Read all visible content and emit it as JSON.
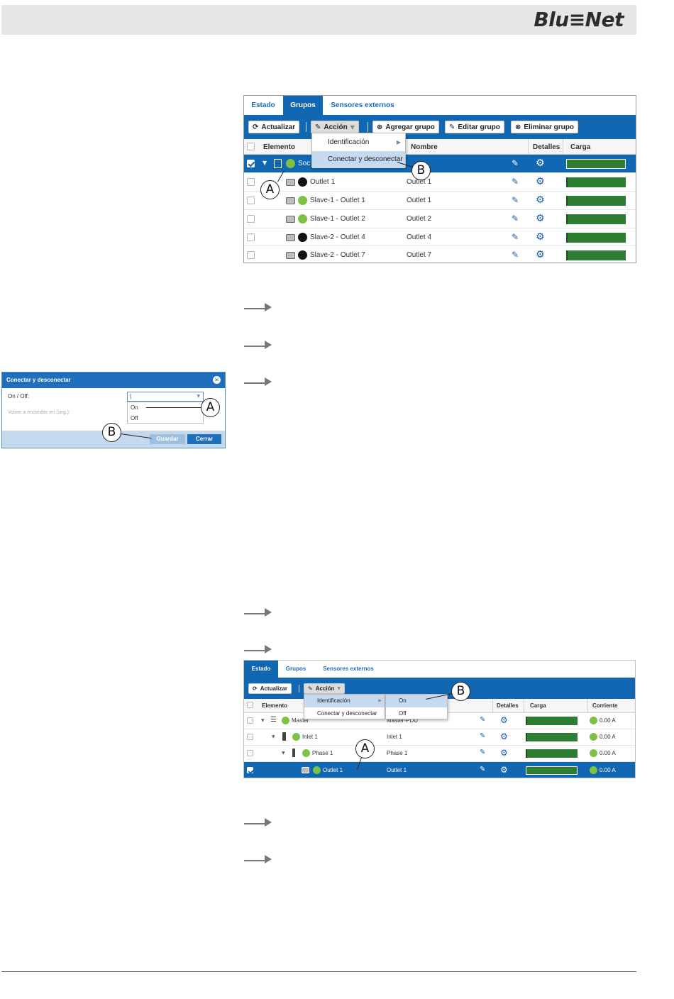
{
  "brand": {
    "logo": "Blu≡Net"
  },
  "screenshot1": {
    "tabs": [
      "Estado",
      "Grupos",
      "Sensores externos"
    ],
    "active_tab": "Grupos",
    "toolbar": {
      "refresh": "Actualizar",
      "action": "Acción",
      "add_group": "Agregar grupo",
      "edit_group": "Editar grupo",
      "delete_group": "Eliminar grupo"
    },
    "columns": {
      "element": "Elemento",
      "name": "Nombre",
      "details": "Detalles",
      "load": "Carga"
    },
    "menu": [
      "Identificación",
      "Conectar y desconectar"
    ],
    "rows": [
      {
        "element": "Soc",
        "name": "",
        "selected": true
      },
      {
        "element": "Outlet 1",
        "name": "Outlet 1",
        "status": "off"
      },
      {
        "element": "Slave-1 - Outlet 1",
        "name": "Outlet 1",
        "status": "on"
      },
      {
        "element": "Slave-1 - Outlet 2",
        "name": "Outlet 2",
        "status": "on"
      },
      {
        "element": "Slave-2 - Outlet 4",
        "name": "Outlet 4",
        "status": "off"
      },
      {
        "element": "Slave-2 - Outlet 7",
        "name": "Outlet 7",
        "status": "off"
      }
    ],
    "callouts": [
      "A",
      "B"
    ]
  },
  "dialog": {
    "title": "Conectar y desconectar",
    "onoff_label": "On / Off:",
    "restart_label": "Volver a encender en (seg.):",
    "options": [
      "On",
      "Off"
    ],
    "save": "Guardar",
    "close": "Cerrar",
    "callouts": [
      "A",
      "B"
    ]
  },
  "screenshot2": {
    "tabs": [
      "Estado",
      "Grupos",
      "Sensores externos"
    ],
    "active_tab": "Estado",
    "toolbar": {
      "refresh": "Actualizar",
      "action": "Acción"
    },
    "columns": {
      "element": "Elemento",
      "details": "Detalles",
      "load": "Carga",
      "current": "Corriente"
    },
    "menu": [
      "Identificación",
      "Conectar y desconectar"
    ],
    "submenu": [
      "On",
      "Off"
    ],
    "rows": [
      {
        "element": "Master",
        "name": "Master-PDU",
        "current": "0.00 A"
      },
      {
        "element": "Inlet 1",
        "name": "Inlet 1",
        "current": "0.00 A"
      },
      {
        "element": "Phase 1",
        "name": "Phase 1",
        "current": "0.00 A"
      },
      {
        "element": "Outlet 1",
        "name": "Outlet 1",
        "current": "0.00 A",
        "selected": true
      }
    ],
    "callouts": [
      "A",
      "B"
    ]
  },
  "colors": {
    "accent": "#1167b1",
    "load_bar": "#2e7d32",
    "status_on": "#7dc242",
    "status_off": "#111111"
  }
}
